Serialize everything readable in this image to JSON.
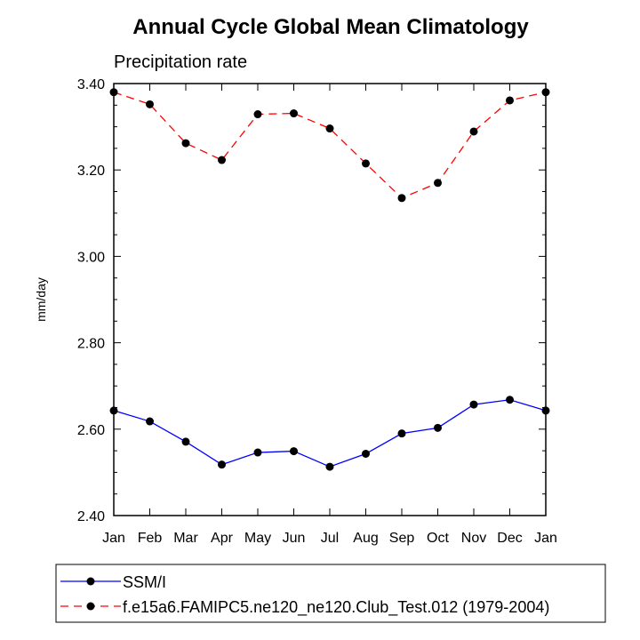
{
  "chart_data": {
    "type": "line",
    "title": "Annual Cycle Global Mean Climatology",
    "subtitle": "Precipitation rate",
    "ylabel": "mm/day",
    "xlabel": "",
    "categories": [
      "Jan",
      "Feb",
      "Mar",
      "Apr",
      "May",
      "Jun",
      "Jul",
      "Aug",
      "Sep",
      "Oct",
      "Nov",
      "Dec",
      "Jan"
    ],
    "ylim": [
      2.4,
      3.4
    ],
    "yticks": [
      2.4,
      2.6,
      2.8,
      3.0,
      3.2,
      3.4
    ],
    "ytick_labels": [
      "2.40",
      "2.60",
      "2.80",
      "3.00",
      "3.20",
      "3.40"
    ],
    "legend_position": "bottom",
    "series": [
      {
        "name": "SSM/I",
        "color": "#0000ff",
        "style": "solid",
        "values": [
          2.643,
          2.618,
          2.571,
          2.518,
          2.546,
          2.549,
          2.513,
          2.543,
          2.59,
          2.603,
          2.657,
          2.668,
          2.643
        ]
      },
      {
        "name": "f.e15a6.FAMIPC5.ne120_ne120.Club_Test.012 (1979-2004)",
        "color": "#ff0000",
        "style": "dashed",
        "values": [
          3.38,
          3.352,
          3.262,
          3.223,
          3.329,
          3.331,
          3.296,
          3.215,
          3.135,
          3.17,
          3.289,
          3.361,
          3.38
        ]
      }
    ]
  }
}
